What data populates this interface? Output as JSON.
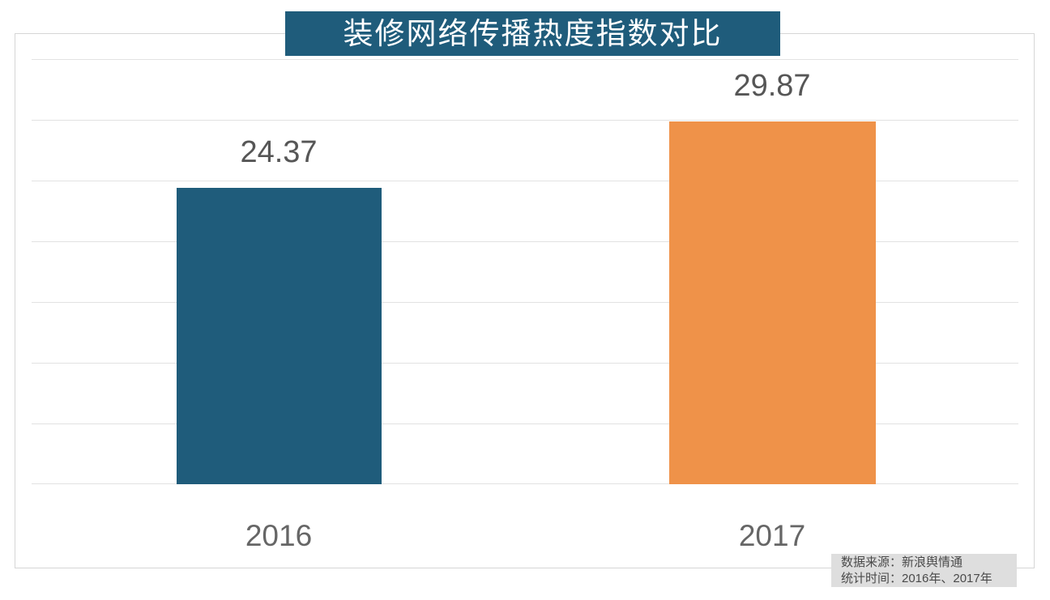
{
  "title": "装修网络传播热度指数对比",
  "chart_data": {
    "type": "bar",
    "title": "装修网络传播热度指数对比",
    "categories": [
      "2016",
      "2017"
    ],
    "values": [
      24.37,
      29.87
    ],
    "value_labels": [
      "24.37",
      "29.87"
    ],
    "xlabel": "",
    "ylabel": "",
    "ylim": [
      0,
      35
    ],
    "grid_step": 5,
    "grid": true,
    "legend": "none",
    "bar_colors": [
      "#1f5c7b",
      "#ef9249"
    ]
  },
  "footnote": {
    "source": "数据来源：新浪舆情通",
    "period": "统计时间：2016年、2017年"
  },
  "colors": {
    "title_bg": "#1f5c7b",
    "title_text": "#ffffff",
    "bar_2016": "#1f5c7b",
    "bar_2017": "#ef9249",
    "gridline": "#e2e2e2",
    "border": "#d6d6d6",
    "value_text": "#565656",
    "category_text": "#666666",
    "footnote_bg": "#dedede",
    "footnote_text": "#4a4a4a"
  }
}
